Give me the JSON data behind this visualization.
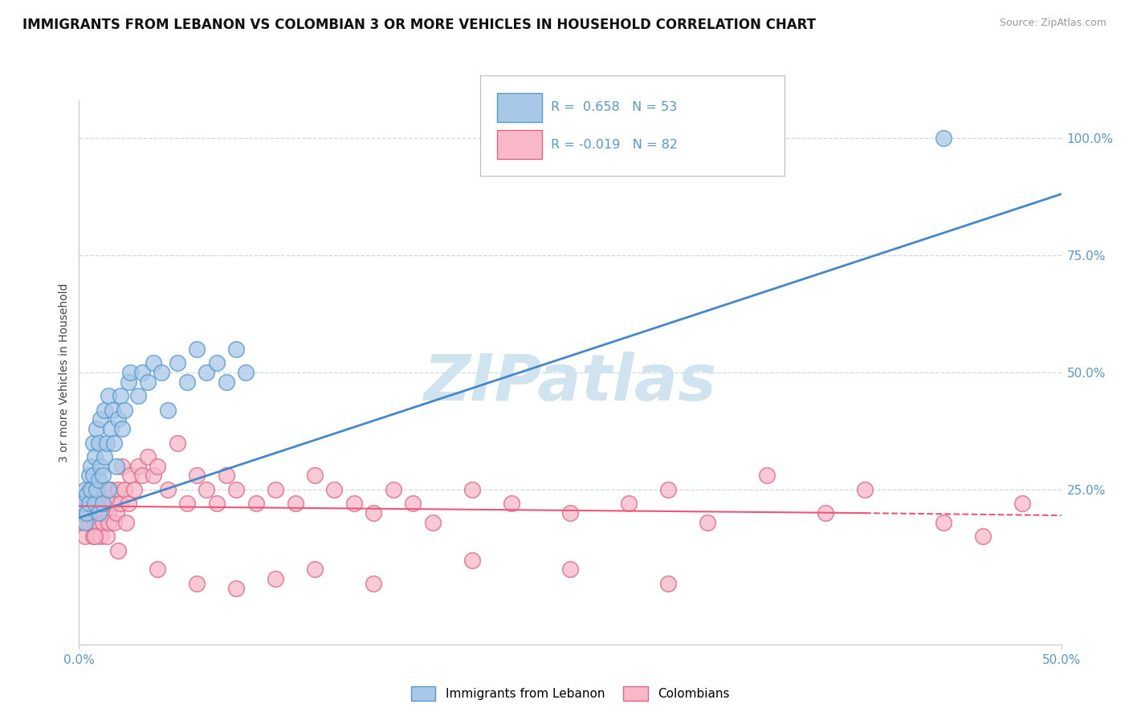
{
  "title": "IMMIGRANTS FROM LEBANON VS COLOMBIAN 3 OR MORE VEHICLES IN HOUSEHOLD CORRELATION CHART",
  "source_text": "Source: ZipAtlas.com",
  "ylabel": "3 or more Vehicles in Household",
  "xticklabels_show": [
    "0.0%",
    "50.0%"
  ],
  "xticklabels_pos": [
    0.0,
    50.0
  ],
  "yticklabels_right": [
    "25.0%",
    "50.0%",
    "75.0%",
    "100.0%"
  ],
  "yticklabels_right_pos": [
    25.0,
    50.0,
    75.0,
    100.0
  ],
  "xlim": [
    0.0,
    50.0
  ],
  "ylim": [
    -8.0,
    108.0
  ],
  "legend_R1": "0.658",
  "legend_N1": "53",
  "legend_R2": "-0.019",
  "legend_N2": "82",
  "blue_color": "#a8c8e8",
  "blue_edge": "#5599cc",
  "pink_color": "#f8b8c8",
  "pink_edge": "#dd6688",
  "trend_blue_color": "#4488cc",
  "trend_pink_color": "#ee5577",
  "grid_color": "#c8d8e8",
  "watermark": "ZIPatlas",
  "watermark_color": "#d0e4f0",
  "background_color": "#ffffff",
  "title_fontsize": 12,
  "tick_color": "#5599cc",
  "blue_trend_x0": 0.0,
  "blue_trend_y0": 19.0,
  "blue_trend_x1": 50.0,
  "blue_trend_y1": 88.0,
  "pink_trend_x0": 0.0,
  "pink_trend_y0": 21.5,
  "pink_trend_solid_x1": 40.0,
  "pink_trend_y1": 20.0,
  "pink_trend_x2": 50.0,
  "pink_trend_y2": 19.5,
  "blue_scatter_x": [
    0.1,
    0.2,
    0.3,
    0.3,
    0.4,
    0.4,
    0.5,
    0.5,
    0.6,
    0.6,
    0.7,
    0.7,
    0.8,
    0.8,
    0.9,
    0.9,
    1.0,
    1.0,
    1.0,
    1.1,
    1.1,
    1.2,
    1.2,
    1.3,
    1.3,
    1.4,
    1.5,
    1.5,
    1.6,
    1.7,
    1.8,
    1.9,
    2.0,
    2.1,
    2.2,
    2.3,
    2.5,
    2.6,
    3.0,
    3.2,
    3.5,
    3.8,
    4.2,
    4.5,
    5.0,
    5.5,
    6.0,
    6.5,
    7.0,
    7.5,
    8.0,
    8.5,
    44.0
  ],
  "blue_scatter_y": [
    20.0,
    22.0,
    25.0,
    18.0,
    24.0,
    20.0,
    28.0,
    22.0,
    30.0,
    25.0,
    35.0,
    28.0,
    32.0,
    22.0,
    38.0,
    25.0,
    35.0,
    27.0,
    20.0,
    40.0,
    30.0,
    28.0,
    22.0,
    42.0,
    32.0,
    35.0,
    45.0,
    25.0,
    38.0,
    42.0,
    35.0,
    30.0,
    40.0,
    45.0,
    38.0,
    42.0,
    48.0,
    50.0,
    45.0,
    50.0,
    48.0,
    52.0,
    50.0,
    42.0,
    52.0,
    48.0,
    55.0,
    50.0,
    52.0,
    48.0,
    55.0,
    50.0,
    100.0
  ],
  "pink_scatter_x": [
    0.1,
    0.2,
    0.3,
    0.3,
    0.4,
    0.5,
    0.5,
    0.6,
    0.7,
    0.8,
    0.8,
    0.9,
    1.0,
    1.0,
    1.1,
    1.1,
    1.2,
    1.2,
    1.3,
    1.3,
    1.4,
    1.4,
    1.5,
    1.5,
    1.6,
    1.7,
    1.8,
    1.9,
    2.0,
    2.1,
    2.2,
    2.3,
    2.4,
    2.5,
    2.6,
    2.8,
    3.0,
    3.2,
    3.5,
    3.8,
    4.0,
    4.5,
    5.0,
    5.5,
    6.0,
    6.5,
    7.0,
    7.5,
    8.0,
    9.0,
    10.0,
    11.0,
    12.0,
    13.0,
    14.0,
    15.0,
    16.0,
    17.0,
    18.0,
    20.0,
    22.0,
    25.0,
    28.0,
    30.0,
    32.0,
    35.0,
    38.0,
    40.0,
    44.0,
    46.0,
    48.0,
    30.0,
    25.0,
    20.0,
    15.0,
    12.0,
    10.0,
    8.0,
    6.0,
    4.0,
    2.0,
    0.8
  ],
  "pink_scatter_y": [
    20.0,
    18.0,
    22.0,
    15.0,
    20.0,
    18.0,
    25.0,
    22.0,
    15.0,
    20.0,
    18.0,
    22.0,
    25.0,
    18.0,
    20.0,
    15.0,
    22.0,
    18.0,
    25.0,
    20.0,
    22.0,
    15.0,
    20.0,
    18.0,
    25.0,
    22.0,
    18.0,
    20.0,
    25.0,
    22.0,
    30.0,
    25.0,
    18.0,
    22.0,
    28.0,
    25.0,
    30.0,
    28.0,
    32.0,
    28.0,
    30.0,
    25.0,
    35.0,
    22.0,
    28.0,
    25.0,
    22.0,
    28.0,
    25.0,
    22.0,
    25.0,
    22.0,
    28.0,
    25.0,
    22.0,
    20.0,
    25.0,
    22.0,
    18.0,
    25.0,
    22.0,
    20.0,
    22.0,
    25.0,
    18.0,
    28.0,
    20.0,
    25.0,
    18.0,
    15.0,
    22.0,
    5.0,
    8.0,
    10.0,
    5.0,
    8.0,
    6.0,
    4.0,
    5.0,
    8.0,
    12.0,
    15.0
  ]
}
